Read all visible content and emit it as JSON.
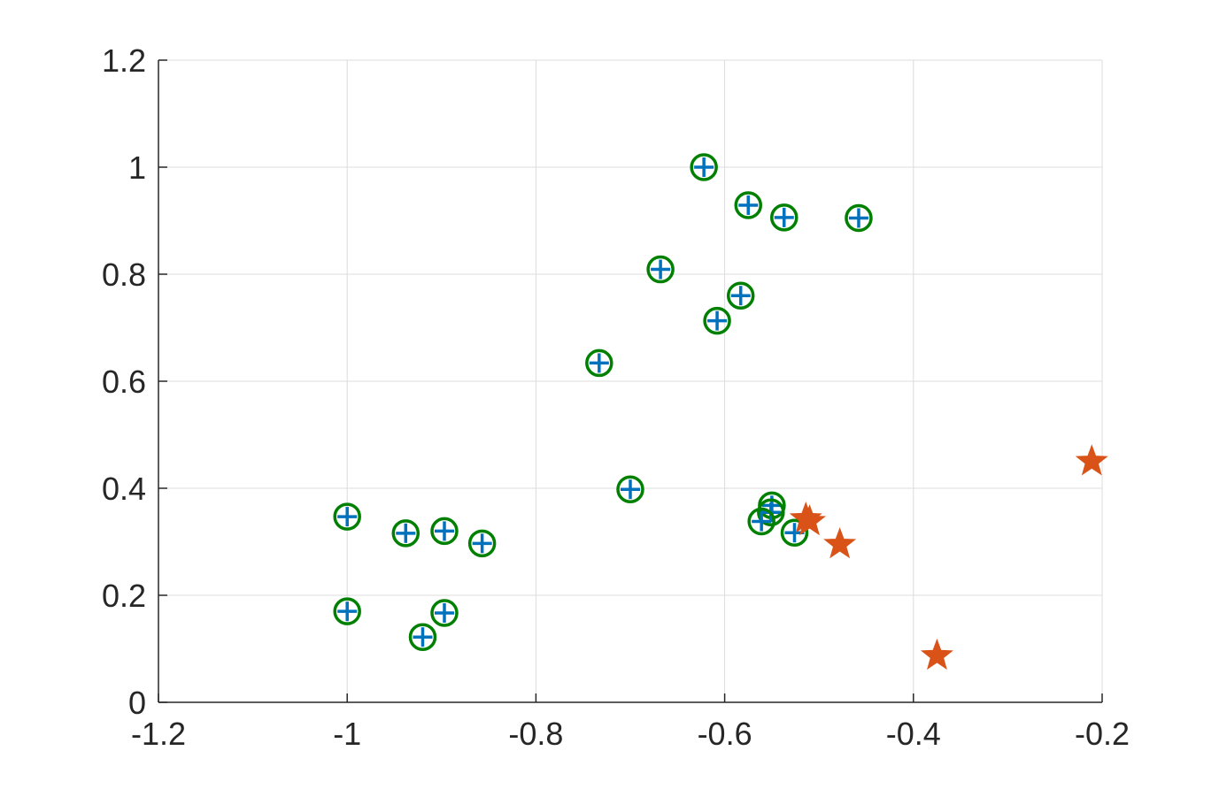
{
  "chart_data": {
    "type": "scatter",
    "xlim": [
      -1.2,
      -0.2
    ],
    "ylim": [
      0,
      1.2
    ],
    "grid": true,
    "xticks": [
      -1.2,
      -1,
      -0.8,
      -0.6,
      -0.4,
      -0.2
    ],
    "xtick_labels": [
      "-1.2",
      "-1",
      "-0.8",
      "-0.6",
      "-0.4",
      "-0.2"
    ],
    "yticks": [
      0,
      0.2,
      0.4,
      0.6,
      0.8,
      1,
      1.2
    ],
    "ytick_labels": [
      "0",
      "0.2",
      "0.4",
      "0.6",
      "0.8",
      "1",
      "1.2"
    ],
    "series": [
      {
        "marker": "circle-plus",
        "colors": {
          "circle": "#008000",
          "plus": "#0072BD"
        },
        "points": [
          [
            -0.622,
            1.0
          ],
          [
            -0.575,
            0.929
          ],
          [
            -0.537,
            0.906
          ],
          [
            -0.458,
            0.905
          ],
          [
            -0.668,
            0.809
          ],
          [
            -0.583,
            0.76
          ],
          [
            -0.608,
            0.713
          ],
          [
            -0.733,
            0.634
          ],
          [
            -0.7,
            0.398
          ],
          [
            -0.55,
            0.368
          ],
          [
            -0.551,
            0.355
          ],
          [
            -0.561,
            0.338
          ],
          [
            -0.526,
            0.317
          ],
          [
            -1.0,
            0.347
          ],
          [
            -0.938,
            0.316
          ],
          [
            -0.897,
            0.32
          ],
          [
            -0.857,
            0.297
          ],
          [
            -1.0,
            0.17
          ],
          [
            -0.897,
            0.167
          ],
          [
            -0.92,
            0.122
          ]
        ]
      },
      {
        "marker": "star",
        "colors": {
          "fill": "#D95319"
        },
        "points": [
          [
            -0.514,
            0.343
          ],
          [
            -0.51,
            0.338
          ],
          [
            -0.478,
            0.295
          ],
          [
            -0.375,
            0.087
          ],
          [
            -0.211,
            0.45
          ]
        ]
      }
    ]
  }
}
